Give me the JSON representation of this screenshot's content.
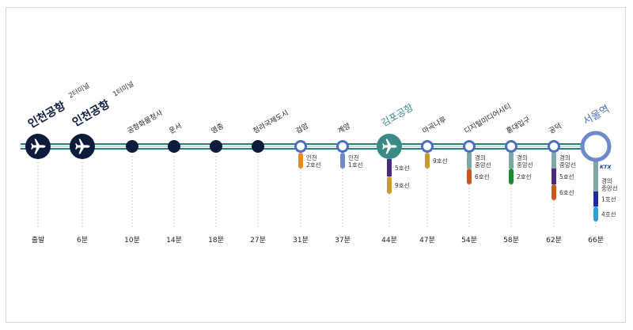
{
  "colors": {
    "line_teal": "#2e7d78",
    "line_pale": "#bfe3e0",
    "node_dark": "#0f1b3d",
    "node_gimpo": "#3a8a86",
    "node_blue": "#4d6fbf",
    "seoul_title": "#4d6fbf",
    "gimpo_title": "#3a8a86",
    "dash": "#cccccc",
    "line1": "#1e2aa0",
    "line2": "#1b8a35",
    "line4": "#2ea0d8",
    "line5": "#4a2a7a",
    "line6": "#c8571c",
    "line9": "#c99a2e",
    "incheon1": "#6e8ac8",
    "incheon2": "#e58a1f",
    "gyeongui": "#7ba9a6",
    "ktx_blue": "#1a3f94",
    "ktx_red": "#d62020"
  },
  "stations": [
    {
      "name": "인천공항",
      "sub": "2터미널",
      "time": "출발",
      "type": "airport"
    },
    {
      "name": "인천공항",
      "sub": "1터미널",
      "time": "6분",
      "type": "airport"
    },
    {
      "name": "공항화물청사",
      "time": "10분",
      "type": "dark"
    },
    {
      "name": "운서",
      "time": "14분",
      "type": "dark"
    },
    {
      "name": "영종",
      "time": "18분",
      "type": "dark"
    },
    {
      "name": "청라국제도시",
      "time": "27분",
      "type": "dark"
    },
    {
      "name": "검암",
      "time": "31분",
      "type": "ring",
      "transfers": [
        {
          "label": "인천\n2호선",
          "color_key": "incheon2"
        }
      ]
    },
    {
      "name": "계양",
      "time": "37분",
      "type": "ring",
      "transfers": [
        {
          "label": "인천\n1호선",
          "color_key": "incheon1"
        }
      ]
    },
    {
      "name": "김포공항",
      "time": "44분",
      "type": "gimpo",
      "transfers": [
        {
          "label": "5호선",
          "color_key": "line5"
        },
        {
          "label": "9호선",
          "color_key": "line9"
        }
      ]
    },
    {
      "name": "마곡나루",
      "time": "47분",
      "type": "ring",
      "transfers": [
        {
          "label": "9호선",
          "color_key": "line9"
        }
      ]
    },
    {
      "name": "디지털미디어시티",
      "time": "54분",
      "type": "ring",
      "transfers": [
        {
          "label": "경의\n중앙선",
          "color_key": "gyeongui"
        },
        {
          "label": "6호선",
          "color_key": "line6"
        }
      ]
    },
    {
      "name": "홍대입구",
      "time": "58분",
      "type": "ring",
      "transfers": [
        {
          "label": "경의\n중앙선",
          "color_key": "gyeongui"
        },
        {
          "label": "2호선",
          "color_key": "line2"
        }
      ]
    },
    {
      "name": "공덕",
      "time": "62분",
      "type": "ring",
      "transfers": [
        {
          "label": "경의\n중앙선",
          "color_key": "gyeongui"
        },
        {
          "label": "5호선",
          "color_key": "line5"
        },
        {
          "label": "6호선",
          "color_key": "line6"
        }
      ]
    },
    {
      "name": "서울역",
      "time": "66분",
      "type": "seoul",
      "transfers": [
        {
          "label": "KTX",
          "color_key": "ktx_blue",
          "logo": true
        },
        {
          "label": "경의\n중앙선",
          "color_key": "gyeongui"
        },
        {
          "label": "1호선",
          "color_key": "line1"
        },
        {
          "label": "4호선",
          "color_key": "line4"
        }
      ]
    }
  ]
}
